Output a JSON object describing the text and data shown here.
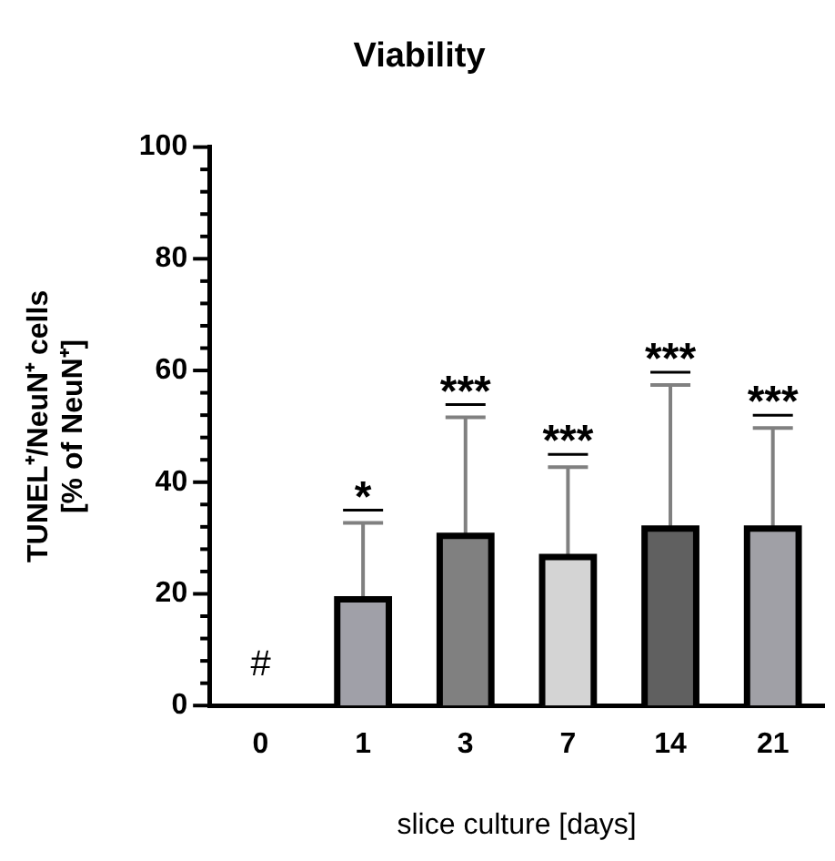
{
  "chart_data": {
    "type": "bar",
    "title": "Viability",
    "xlabel": "slice culture [days]",
    "ylabel": "TUNEL⁺/NeuN⁺ cells\n[% of NeuN⁺]",
    "categories": [
      "0",
      "1",
      "3",
      "7",
      "14",
      "21"
    ],
    "values": [
      0,
      19,
      30.4,
      26.6,
      31.7,
      31.7
    ],
    "colors": [
      "#a0a0a8",
      "#a0a0a8",
      "#808080",
      "#d4d4d4",
      "#606060",
      "#a0a0a6"
    ],
    "errors": [
      null,
      [
        19,
        32.7
      ],
      [
        30.4,
        51.6
      ],
      [
        26.6,
        42.7
      ],
      [
        31.7,
        57.4
      ],
      [
        31.7,
        49.7
      ]
    ],
    "ylim": [
      0,
      100
    ],
    "yticks": [
      0,
      {
        "value": 4,
        "label": null
      },
      {
        "value": 8,
        "label": null
      },
      {
        "value": 12,
        "label": null
      },
      {
        "value": 16,
        "label": null
      },
      20,
      {
        "value": 24,
        "label": null
      },
      {
        "value": 28,
        "label": null
      },
      {
        "value": 32,
        "label": null
      },
      {
        "value": 36,
        "label": null
      },
      40,
      {
        "value": 44,
        "label": null
      },
      {
        "value": 48,
        "label": null
      },
      {
        "value": 52,
        "label": null
      },
      {
        "value": 56,
        "label": null
      },
      60,
      {
        "value": 64,
        "label": null
      },
      {
        "value": 68,
        "label": null
      },
      {
        "value": 72,
        "label": null
      },
      {
        "value": 76,
        "label": null
      },
      80,
      {
        "value": 84,
        "label": null
      },
      {
        "value": 88,
        "label": null
      },
      {
        "value": 92,
        "label": null
      },
      {
        "value": 96,
        "label": null
      },
      100
    ],
    "grid": false,
    "legend": false,
    "annotations": [
      {
        "text": "#",
        "x": "0",
        "y": 0
      },
      {
        "text": "*",
        "x": "1",
        "y": 32.7
      },
      {
        "text": "***",
        "x": "3",
        "y": 51.6
      },
      {
        "text": "***",
        "x": "7",
        "y": 42.7
      },
      {
        "text": "***",
        "x": "14",
        "y": 57.4
      },
      {
        "text": "***",
        "x": "21",
        "y": 49.7
      }
    ]
  }
}
